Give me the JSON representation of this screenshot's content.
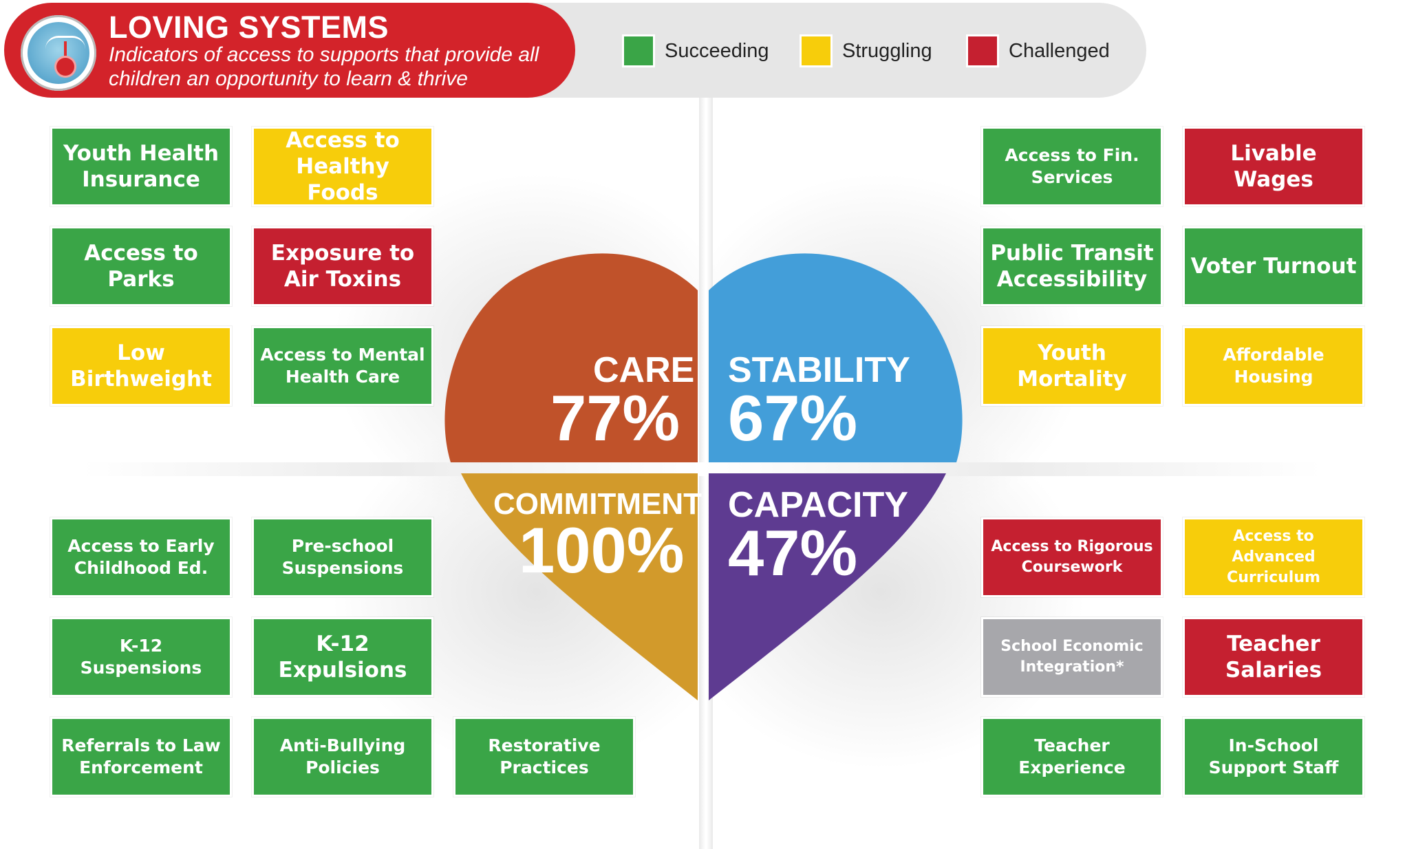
{
  "header": {
    "title": "LOVING SYSTEMS",
    "subtitle": "Indicators of access to supports that provide all children an opportunity to learn & thrive"
  },
  "legend": [
    {
      "label": "Succeeding",
      "color": "#3aa547"
    },
    {
      "label": "Struggling",
      "color": "#f7cd0b"
    },
    {
      "label": "Challenged",
      "color": "#c52030"
    }
  ],
  "colors": {
    "succeeding": "#3aa547",
    "struggling": "#f7cd0b",
    "challenged": "#c52030",
    "no_rating": "#a7a7ab",
    "care": "#c0522a",
    "stability": "#439ed9",
    "commitment": "#d29a2b",
    "capacity": "#5e3b91",
    "header_red": "#d3232a"
  },
  "heart": {
    "care": {
      "name": "CARE",
      "value": "77%"
    },
    "stability": {
      "name": "STABILITY",
      "value": "67%"
    },
    "commitment": {
      "name": "COMMITMENT",
      "value": "100%"
    },
    "capacity": {
      "name": "CAPACITY",
      "value": "47%"
    }
  },
  "care_tiles": [
    {
      "label": "Youth Health Insurance",
      "status": "succeeding"
    },
    {
      "label": "Access to Healthy Foods",
      "status": "struggling"
    },
    {
      "label": "Access to Parks",
      "status": "succeeding"
    },
    {
      "label": "Exposure to Air Toxins",
      "status": "challenged"
    },
    {
      "label": "Low Birthweight",
      "status": "struggling"
    },
    {
      "label": "Access to Mental Health Care",
      "status": "succeeding"
    }
  ],
  "stability_tiles": [
    {
      "label": "Access to Fin. Services",
      "status": "succeeding"
    },
    {
      "label": "Livable Wages",
      "status": "challenged"
    },
    {
      "label": "Public Transit Accessibility",
      "status": "succeeding"
    },
    {
      "label": "Voter Turnout",
      "status": "succeeding"
    },
    {
      "label": "Youth Mortality",
      "status": "struggling"
    },
    {
      "label": "Affordable Housing",
      "status": "struggling"
    }
  ],
  "commitment_tiles": [
    {
      "label": "Access to Early Childhood Ed.",
      "status": "succeeding"
    },
    {
      "label": "Pre-school Suspensions",
      "status": "succeeding"
    },
    {
      "label": "K-12 Suspensions",
      "status": "succeeding"
    },
    {
      "label": "K-12 Expulsions",
      "status": "succeeding"
    },
    {
      "label": "Referrals to Law Enforcement",
      "status": "succeeding"
    },
    {
      "label": "Anti-Bullying Policies",
      "status": "succeeding"
    },
    {
      "label": "Restorative Practices",
      "status": "succeeding"
    }
  ],
  "capacity_tiles": [
    {
      "label": "Access to Rigorous Coursework",
      "status": "challenged"
    },
    {
      "label": "Access to Advanced Curriculum",
      "status": "struggling"
    },
    {
      "label": "School Economic Integration*",
      "status": "no_rating"
    },
    {
      "label": "Teacher Salaries",
      "status": "challenged"
    },
    {
      "label": "Teacher Experience",
      "status": "succeeding"
    },
    {
      "label": "In-School Support Staff",
      "status": "succeeding"
    }
  ]
}
